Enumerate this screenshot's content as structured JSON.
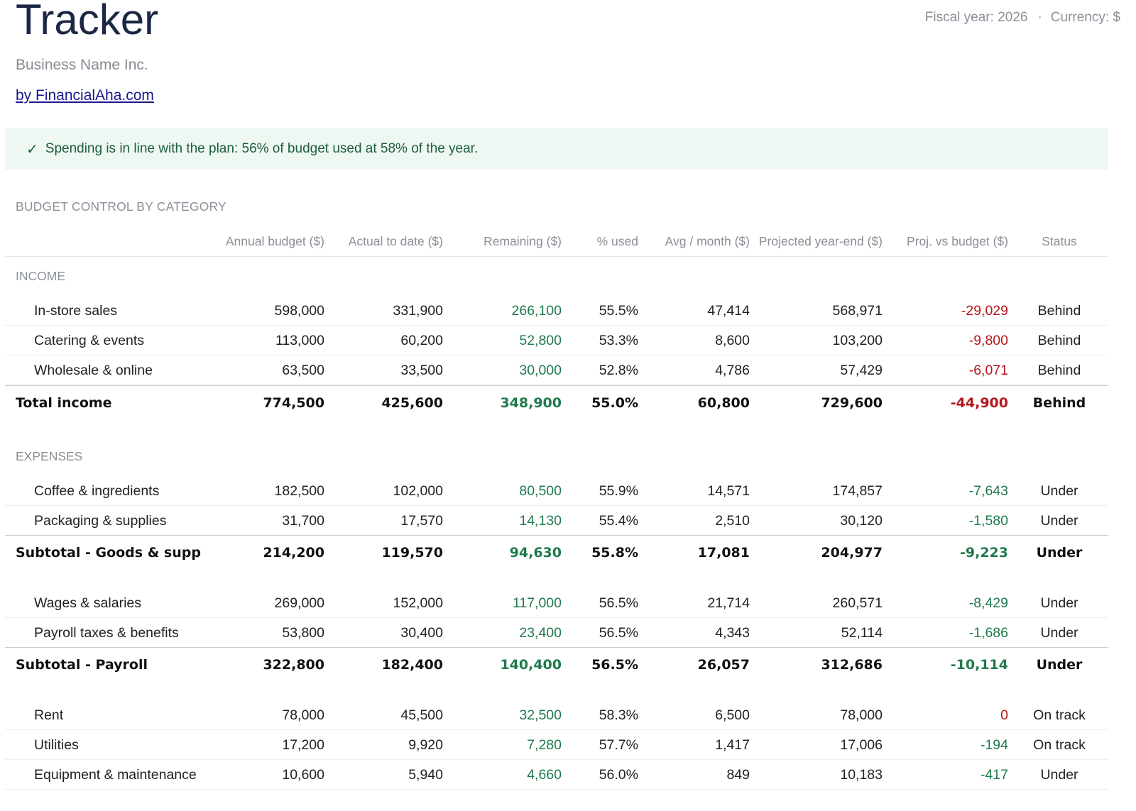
{
  "header": {
    "title": "Tracker",
    "company": "Business Name Inc.",
    "credit_link": "by FinancialAha.com",
    "fiscal_year": "Fiscal year: 2026",
    "separator": "·",
    "currency": "Currency: $"
  },
  "banner": {
    "icon": "check-icon",
    "check_glyph": "✓",
    "message": "Spending is in line with the plan: 56% of budget used at 58% of the year.",
    "background": "#eef7f1",
    "text_color": "#1d5e3d"
  },
  "section_title": "BUDGET CONTROL BY CATEGORY",
  "columns": [
    "Annual budget ($)",
    "Actual to date ($)",
    "Remaining ($)",
    "% used",
    "Avg / month ($)",
    "Projected year-end ($)",
    "Proj. vs budget ($)",
    "Status"
  ],
  "colors": {
    "positive": "#1f7a4d",
    "negative": "#b5171b",
    "muted": "#8a8f98",
    "title": "#1b2744"
  },
  "income": {
    "label": "INCOME",
    "rows": [
      {
        "name": "In-store sales",
        "budget": "598,000",
        "actual": "331,900",
        "remaining": "266,100",
        "pct": "55.5%",
        "avg": "47,414",
        "projected": "568,971",
        "variance": "-29,029",
        "status": "Behind"
      },
      {
        "name": "Catering & events",
        "budget": "113,000",
        "actual": "60,200",
        "remaining": "52,800",
        "pct": "53.3%",
        "avg": "8,600",
        "projected": "103,200",
        "variance": "-9,800",
        "status": "Behind"
      },
      {
        "name": "Wholesale & online",
        "budget": "63,500",
        "actual": "33,500",
        "remaining": "30,000",
        "pct": "52.8%",
        "avg": "4,786",
        "projected": "57,429",
        "variance": "-6,071",
        "status": "Behind"
      }
    ],
    "total": {
      "name": "Total income",
      "budget": "774,500",
      "actual": "425,600",
      "remaining": "348,900",
      "pct": "55.0%",
      "avg": "60,800",
      "projected": "729,600",
      "variance": "-44,900",
      "status": "Behind"
    }
  },
  "expenses": {
    "label": "EXPENSES",
    "goods": {
      "rows": [
        {
          "name": "Coffee & ingredients",
          "budget": "182,500",
          "actual": "102,000",
          "remaining": "80,500",
          "pct": "55.9%",
          "avg": "14,571",
          "projected": "174,857",
          "variance": "-7,643",
          "status": "Under"
        },
        {
          "name": "Packaging & supplies",
          "budget": "31,700",
          "actual": "17,570",
          "remaining": "14,130",
          "pct": "55.4%",
          "avg": "2,510",
          "projected": "30,120",
          "variance": "-1,580",
          "status": "Under"
        }
      ],
      "total": {
        "name": "Subtotal - Goods & suppl",
        "budget": "214,200",
        "actual": "119,570",
        "remaining": "94,630",
        "pct": "55.8%",
        "avg": "17,081",
        "projected": "204,977",
        "variance": "-9,223",
        "status": "Under"
      }
    },
    "payroll": {
      "rows": [
        {
          "name": "Wages & salaries",
          "budget": "269,000",
          "actual": "152,000",
          "remaining": "117,000",
          "pct": "56.5%",
          "avg": "21,714",
          "projected": "260,571",
          "variance": "-8,429",
          "status": "Under"
        },
        {
          "name": "Payroll taxes & benefits",
          "budget": "53,800",
          "actual": "30,400",
          "remaining": "23,400",
          "pct": "56.5%",
          "avg": "4,343",
          "projected": "52,114",
          "variance": "-1,686",
          "status": "Under"
        }
      ],
      "total": {
        "name": "Subtotal - Payroll",
        "budget": "322,800",
        "actual": "182,400",
        "remaining": "140,400",
        "pct": "56.5%",
        "avg": "26,057",
        "projected": "312,686",
        "variance": "-10,114",
        "status": "Under"
      }
    },
    "occupancy": {
      "rows": [
        {
          "name": "Rent",
          "budget": "78,000",
          "actual": "45,500",
          "remaining": "32,500",
          "pct": "58.3%",
          "avg": "6,500",
          "projected": "78,000",
          "variance": "0",
          "status": "On track"
        },
        {
          "name": "Utilities",
          "budget": "17,200",
          "actual": "9,920",
          "remaining": "7,280",
          "pct": "57.7%",
          "avg": "1,417",
          "projected": "17,006",
          "variance": "-194",
          "status": "On track"
        },
        {
          "name": "Equipment & maintenance",
          "budget": "10,600",
          "actual": "5,940",
          "remaining": "4,660",
          "pct": "56.0%",
          "avg": "849",
          "projected": "10,183",
          "variance": "-417",
          "status": "Under"
        }
      ]
    }
  }
}
